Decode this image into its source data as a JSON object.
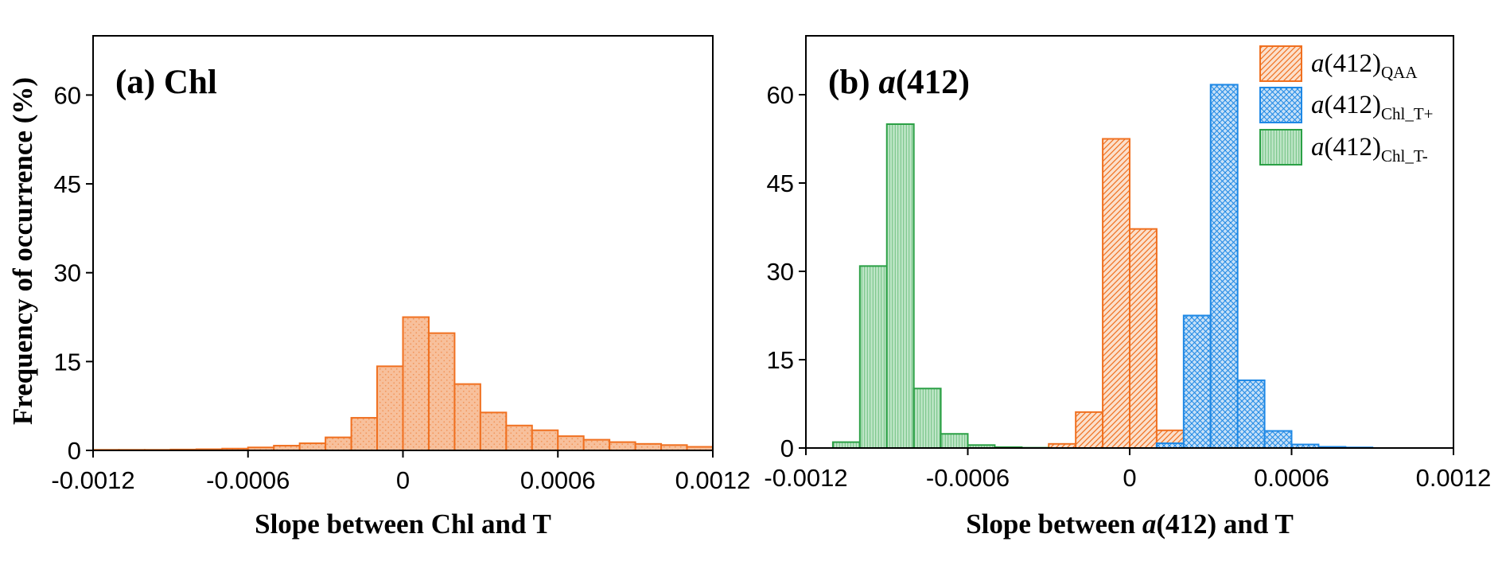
{
  "chart_data": [
    {
      "type": "bar",
      "panel_label_prefix": "(a) ",
      "panel_label_main": "Chl",
      "xlabel": "Slope between Chl and T",
      "ylabel": "Frequency of occurrence (%)",
      "xlim": [
        -0.0012,
        0.0012
      ],
      "ylim": [
        0,
        70
      ],
      "x_ticks": [
        "-0.0012",
        "-0.0006",
        "0",
        "0.0006",
        "0.0012"
      ],
      "y_ticks": [
        "0",
        "15",
        "30",
        "45",
        "60"
      ],
      "bin_width": 0.0001,
      "series": [
        {
          "color": "#F07020",
          "fill": "#F7C09C",
          "pattern": "dots",
          "bins": [
            {
              "x": -0.00115,
              "y": 0.1
            },
            {
              "x": -0.00105,
              "y": 0.1
            },
            {
              "x": -0.00095,
              "y": 0.1
            },
            {
              "x": -0.00085,
              "y": 0.15
            },
            {
              "x": -0.00075,
              "y": 0.2
            },
            {
              "x": -0.00065,
              "y": 0.3
            },
            {
              "x": -0.00055,
              "y": 0.5
            },
            {
              "x": -0.00045,
              "y": 0.8
            },
            {
              "x": -0.00035,
              "y": 1.2
            },
            {
              "x": -0.00025,
              "y": 2.2
            },
            {
              "x": -0.00015,
              "y": 5.5
            },
            {
              "x": -5e-05,
              "y": 14.2
            },
            {
              "x": 5e-05,
              "y": 22.5
            },
            {
              "x": 0.00015,
              "y": 19.8
            },
            {
              "x": 0.00025,
              "y": 11.2
            },
            {
              "x": 0.00035,
              "y": 6.4
            },
            {
              "x": 0.00045,
              "y": 4.2
            },
            {
              "x": 0.00055,
              "y": 3.4
            },
            {
              "x": 0.00065,
              "y": 2.4
            },
            {
              "x": 0.00075,
              "y": 1.8
            },
            {
              "x": 0.00085,
              "y": 1.4
            },
            {
              "x": 0.00095,
              "y": 1.1
            },
            {
              "x": 0.00105,
              "y": 0.9
            },
            {
              "x": 0.00115,
              "y": 0.6
            }
          ]
        }
      ]
    },
    {
      "type": "bar",
      "panel_label_prefix": "(b) ",
      "panel_label_italic": "a",
      "panel_label_main": "(412)",
      "xlabel_prefix": "Slope between ",
      "xlabel_italic": "a",
      "xlabel_suffix": "(412) and T",
      "xlim": [
        -0.0012,
        0.0012
      ],
      "ylim": [
        0,
        70
      ],
      "x_ticks": [
        "-0.0012",
        "-0.0006",
        "0",
        "0.0006",
        "0.0012"
      ],
      "y_ticks": [
        "0",
        "15",
        "30",
        "45",
        "60"
      ],
      "bin_width": 0.0001,
      "legend_position": "top-right",
      "series": [
        {
          "name_italic": "a",
          "name_main": "(412)",
          "name_sub": "QAA",
          "color": "#F07020",
          "fill": "#FBE0CC",
          "pattern": "diagonal",
          "bins": [
            {
              "x": -0.00025,
              "y": 0.7
            },
            {
              "x": -0.00015,
              "y": 6.1
            },
            {
              "x": -5e-05,
              "y": 52.5
            },
            {
              "x": 5e-05,
              "y": 37.2
            },
            {
              "x": 0.00015,
              "y": 3.0
            },
            {
              "x": 0.00025,
              "y": 0.2
            }
          ]
        },
        {
          "name_italic": "a",
          "name_main": "(412)",
          "name_sub": "Chl_T+",
          "color": "#1E88E5",
          "fill": "#C6E0F7",
          "pattern": "crosshatch",
          "bins": [
            {
              "x": 0.00015,
              "y": 0.8
            },
            {
              "x": 0.00025,
              "y": 22.5
            },
            {
              "x": 0.00035,
              "y": 61.7
            },
            {
              "x": 0.00045,
              "y": 11.5
            },
            {
              "x": 0.00055,
              "y": 2.9
            },
            {
              "x": 0.00065,
              "y": 0.6
            },
            {
              "x": 0.00075,
              "y": 0.2
            },
            {
              "x": 0.00085,
              "y": 0.1
            }
          ]
        },
        {
          "name_italic": "a",
          "name_main": "(412)",
          "name_sub": "Chl_T-",
          "color": "#2BA045",
          "fill": "#BFE6C8",
          "pattern": "vertical",
          "bins": [
            {
              "x": -0.00105,
              "y": 1.0
            },
            {
              "x": -0.00095,
              "y": 30.9
            },
            {
              "x": -0.00085,
              "y": 55.0
            },
            {
              "x": -0.00075,
              "y": 10.1
            },
            {
              "x": -0.00065,
              "y": 2.4
            },
            {
              "x": -0.00055,
              "y": 0.5
            },
            {
              "x": -0.00045,
              "y": 0.15
            },
            {
              "x": -0.00035,
              "y": 0.05
            }
          ]
        }
      ]
    }
  ]
}
